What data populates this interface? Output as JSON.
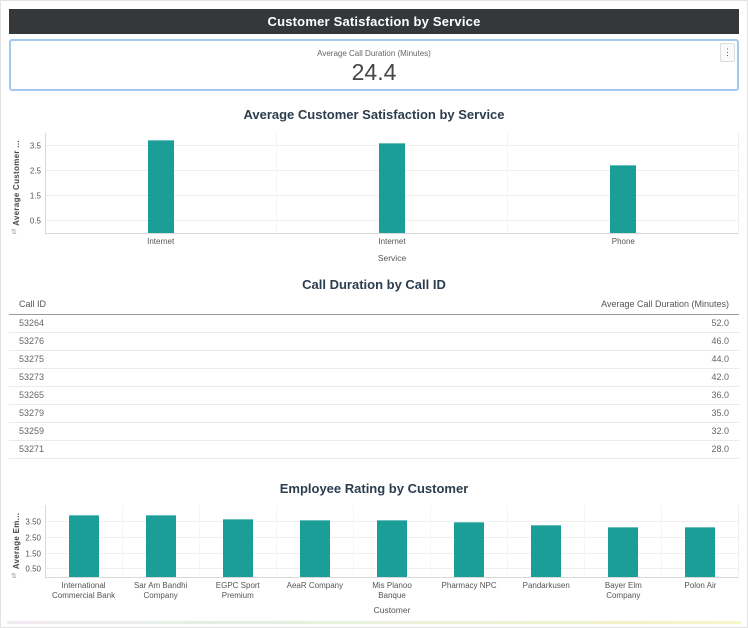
{
  "header": {
    "title": "Customer Satisfaction by Service"
  },
  "kpi": {
    "label": "Average Call Duration (Minutes)",
    "value": "24.4",
    "menu_icon": "⋮"
  },
  "colors": {
    "bar_teal": "#1b9e98",
    "header_bg": "#35383b",
    "card_selection_border": "#a6c8ef",
    "title_text": "#2b3d4f"
  },
  "sort_icon_glyph": "⇅",
  "chart_data": [
    {
      "type": "bar",
      "title": "Average Customer Satisfaction by Service",
      "ylabel": "Average Customer ...",
      "xlabel": "Service",
      "categories": [
        "Internet",
        "Internet",
        "Phone"
      ],
      "values": [
        3.7,
        3.58,
        2.67
      ],
      "yticks": [
        "3.5",
        "2.5",
        "1.5",
        "0.5"
      ],
      "ylim": [
        0,
        4.0
      ],
      "grid": true,
      "bar_color": "#1b9e98"
    },
    {
      "type": "table",
      "title": "Call Duration by Call ID",
      "columns": [
        "Call ID",
        "Average Call Duration (Minutes)"
      ],
      "rows": [
        [
          "53264",
          "52.0"
        ],
        [
          "53276",
          "46.0"
        ],
        [
          "53275",
          "44.0"
        ],
        [
          "53273",
          "42.0"
        ],
        [
          "53265",
          "36.0"
        ],
        [
          "53279",
          "35.0"
        ],
        [
          "53259",
          "32.0"
        ],
        [
          "53271",
          "28.0"
        ]
      ]
    },
    {
      "type": "bar",
      "title": "Employee Rating by Customer",
      "ylabel": "Average Em...",
      "xlabel": "Customer",
      "categories": [
        "International Commercial Bank",
        "Sar Am Bandhi Company",
        "EGPC Sport Premium",
        "AeaR Company",
        "Mis Planoo Banque",
        "Pharmacy NPC",
        "Pandarkusen",
        "Bayer Elm Company",
        "Polon Air"
      ],
      "values": [
        3.9,
        3.9,
        3.65,
        3.55,
        3.55,
        3.45,
        3.25,
        3.15,
        3.15
      ],
      "yticks": [
        "3.50",
        "2.50",
        "1.50",
        "0.50"
      ],
      "ylim": [
        0,
        4.6
      ],
      "grid": true,
      "bar_color": "#1b9e98"
    }
  ]
}
